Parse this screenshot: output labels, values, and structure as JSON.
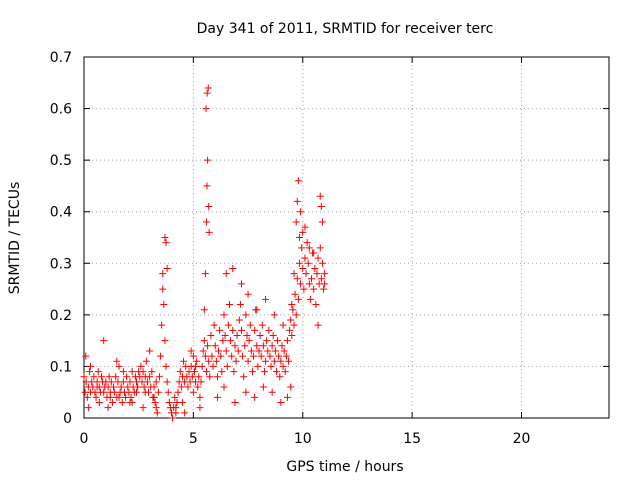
{
  "chart_data": {
    "type": "scatter",
    "title": "Day 341 of 2011, SRMTID for receiver terc",
    "xlabel": "GPS time / hours",
    "ylabel": "SRMTID / TECUs",
    "xlim": [
      0,
      24
    ],
    "ylim": [
      0,
      0.7
    ],
    "xticks": [
      0,
      5,
      10,
      15,
      20
    ],
    "xtick_labels": [
      "0",
      "5",
      "10",
      "15",
      "20"
    ],
    "yticks": [
      0,
      0.1,
      0.2,
      0.3,
      0.4,
      0.5,
      0.6,
      0.7
    ],
    "ytick_labels": [
      "0",
      "0.1",
      "0.2",
      "0.3",
      "0.4",
      "0.5",
      "0.6",
      "0.7"
    ],
    "grid": true,
    "marker": "+",
    "marker_color": "#ff0000",
    "series": [
      {
        "name": "SRMTID",
        "x": [
          0.0,
          0.05,
          0.1,
          0.15,
          0.2,
          0.25,
          0.3,
          0.35,
          0.4,
          0.45,
          0.5,
          0.55,
          0.6,
          0.65,
          0.7,
          0.75,
          0.8,
          0.85,
          0.9,
          0.95,
          1.0,
          1.05,
          1.1,
          1.15,
          1.2,
          1.25,
          1.3,
          1.35,
          1.4,
          1.45,
          1.5,
          1.55,
          1.6,
          1.65,
          1.7,
          1.75,
          1.8,
          1.85,
          1.9,
          1.95,
          2.0,
          2.05,
          2.1,
          2.15,
          2.2,
          2.25,
          2.3,
          2.35,
          2.4,
          2.45,
          2.5,
          2.55,
          2.6,
          2.65,
          2.7,
          2.75,
          2.8,
          2.85,
          2.9,
          2.95,
          3.0,
          3.05,
          3.1,
          3.15,
          3.2,
          3.25,
          3.3,
          3.35,
          3.4,
          3.45,
          3.5,
          3.55,
          3.6,
          3.65,
          3.7,
          3.75,
          3.8,
          3.85,
          3.9,
          3.95,
          4.0,
          4.05,
          4.1,
          4.15,
          4.2,
          4.25,
          4.3,
          4.35,
          4.4,
          4.45,
          4.5,
          4.55,
          4.6,
          4.65,
          4.7,
          4.75,
          4.8,
          4.85,
          4.9,
          4.95,
          5.0,
          5.05,
          5.1,
          5.15,
          5.2,
          5.25,
          5.3,
          5.35,
          5.4,
          5.45,
          5.5,
          5.55,
          5.6,
          5.65,
          5.7,
          5.75,
          5.8,
          5.85,
          5.9,
          5.95,
          6.0,
          6.05,
          6.1,
          6.15,
          6.2,
          6.25,
          6.3,
          6.35,
          6.4,
          6.45,
          6.5,
          6.55,
          6.6,
          6.65,
          6.7,
          6.75,
          6.8,
          6.85,
          6.9,
          6.95,
          7.0,
          7.05,
          7.1,
          7.15,
          7.2,
          7.25,
          7.3,
          7.35,
          7.4,
          7.45,
          7.5,
          7.55,
          7.6,
          7.65,
          7.7,
          7.75,
          7.8,
          7.85,
          7.9,
          7.95,
          8.0,
          8.05,
          8.1,
          8.15,
          8.2,
          8.25,
          8.3,
          8.35,
          8.4,
          8.45,
          8.5,
          8.55,
          8.6,
          8.65,
          8.7,
          8.75,
          8.8,
          8.85,
          8.9,
          8.95,
          9.0,
          9.05,
          9.1,
          9.15,
          9.2,
          9.25,
          9.3,
          9.35,
          9.4,
          9.45,
          9.5,
          9.55,
          9.6,
          9.65,
          9.7,
          9.75,
          9.8,
          9.85,
          9.9,
          9.95,
          10.0,
          10.05,
          10.1,
          10.15,
          10.2,
          10.25,
          10.3,
          10.35,
          10.4,
          10.45,
          10.5,
          10.55,
          10.6,
          10.65,
          10.7,
          10.75,
          10.8,
          10.85,
          10.9,
          10.95,
          11.0,
          0.08,
          0.3,
          0.6,
          0.9,
          1.2,
          1.5,
          1.8,
          2.1,
          2.4,
          2.7,
          3.0,
          3.3,
          3.6,
          3.7,
          3.75,
          3.8,
          4.2,
          4.6,
          4.9,
          5.1,
          5.5,
          5.55,
          5.6,
          5.62,
          5.65,
          5.68,
          5.7,
          5.72,
          5.58,
          5.63,
          6.5,
          6.8,
          7.2,
          7.5,
          7.9,
          8.3,
          8.7,
          9.1,
          9.5,
          9.6,
          9.7,
          9.75,
          9.8,
          9.85,
          9.9,
          10.0,
          10.1,
          10.3,
          10.5,
          10.7,
          10.8,
          10.85,
          10.9,
          11.0,
          0.2,
          0.7,
          1.1,
          1.6,
          2.2,
          2.8,
          3.2,
          4.5,
          5.0,
          5.3,
          6.1,
          6.4,
          6.9,
          7.4,
          7.8,
          8.2,
          8.6,
          9.0,
          9.3,
          9.45
        ],
        "y": [
          0.08,
          0.05,
          0.07,
          0.04,
          0.06,
          0.09,
          0.05,
          0.07,
          0.06,
          0.08,
          0.05,
          0.04,
          0.07,
          0.09,
          0.06,
          0.05,
          0.08,
          0.07,
          0.05,
          0.06,
          0.07,
          0.04,
          0.06,
          0.08,
          0.05,
          0.07,
          0.03,
          0.06,
          0.05,
          0.08,
          0.04,
          0.07,
          0.1,
          0.05,
          0.06,
          0.03,
          0.07,
          0.05,
          0.04,
          0.08,
          0.06,
          0.05,
          0.07,
          0.04,
          0.09,
          0.06,
          0.05,
          0.08,
          0.07,
          0.06,
          0.09,
          0.08,
          0.1,
          0.07,
          0.09,
          0.06,
          0.08,
          0.11,
          0.07,
          0.05,
          0.08,
          0.06,
          0.09,
          0.04,
          0.06,
          0.03,
          0.02,
          0.01,
          0.05,
          0.08,
          0.12,
          0.18,
          0.25,
          0.22,
          0.15,
          0.1,
          0.07,
          0.05,
          0.03,
          0.02,
          0.01,
          0.0,
          0.02,
          0.04,
          0.01,
          0.03,
          0.05,
          0.07,
          0.09,
          0.06,
          0.08,
          0.11,
          0.07,
          0.1,
          0.08,
          0.06,
          0.09,
          0.07,
          0.1,
          0.08,
          0.12,
          0.09,
          0.07,
          0.11,
          0.06,
          0.08,
          0.04,
          0.07,
          0.1,
          0.13,
          0.15,
          0.12,
          0.09,
          0.14,
          0.11,
          0.08,
          0.16,
          0.12,
          0.1,
          0.18,
          0.14,
          0.11,
          0.08,
          0.13,
          0.17,
          0.12,
          0.09,
          0.15,
          0.2,
          0.16,
          0.13,
          0.1,
          0.18,
          0.22,
          0.15,
          0.12,
          0.17,
          0.09,
          0.14,
          0.11,
          0.16,
          0.13,
          0.19,
          0.22,
          0.17,
          0.12,
          0.08,
          0.14,
          0.2,
          0.16,
          0.11,
          0.15,
          0.18,
          0.13,
          0.09,
          0.12,
          0.17,
          0.21,
          0.14,
          0.1,
          0.13,
          0.16,
          0.12,
          0.18,
          0.14,
          0.09,
          0.11,
          0.15,
          0.13,
          0.17,
          0.12,
          0.1,
          0.14,
          0.16,
          0.11,
          0.13,
          0.09,
          0.15,
          0.12,
          0.08,
          0.11,
          0.14,
          0.1,
          0.13,
          0.09,
          0.12,
          0.15,
          0.11,
          0.17,
          0.19,
          0.16,
          0.21,
          0.18,
          0.24,
          0.2,
          0.27,
          0.23,
          0.3,
          0.26,
          0.33,
          0.29,
          0.25,
          0.31,
          0.28,
          0.34,
          0.3,
          0.26,
          0.23,
          0.27,
          0.32,
          0.25,
          0.29,
          0.22,
          0.28,
          0.31,
          0.26,
          0.33,
          0.27,
          0.3,
          0.25,
          0.28,
          0.12,
          0.1,
          0.06,
          0.15,
          0.04,
          0.11,
          0.09,
          0.03,
          0.05,
          0.02,
          0.13,
          0.07,
          0.28,
          0.35,
          0.34,
          0.29,
          0.02,
          0.01,
          0.13,
          0.1,
          0.21,
          0.28,
          0.38,
          0.45,
          0.5,
          0.64,
          0.41,
          0.36,
          0.6,
          0.63,
          0.28,
          0.29,
          0.26,
          0.24,
          0.21,
          0.23,
          0.2,
          0.18,
          0.22,
          0.28,
          0.38,
          0.42,
          0.46,
          0.35,
          0.4,
          0.36,
          0.37,
          0.33,
          0.32,
          0.18,
          0.43,
          0.41,
          0.38,
          0.26,
          0.02,
          0.03,
          0.02,
          0.04,
          0.03,
          0.05,
          0.04,
          0.03,
          0.05,
          0.02,
          0.04,
          0.06,
          0.03,
          0.05,
          0.04,
          0.06,
          0.05,
          0.03,
          0.04,
          0.06
        ]
      }
    ]
  }
}
